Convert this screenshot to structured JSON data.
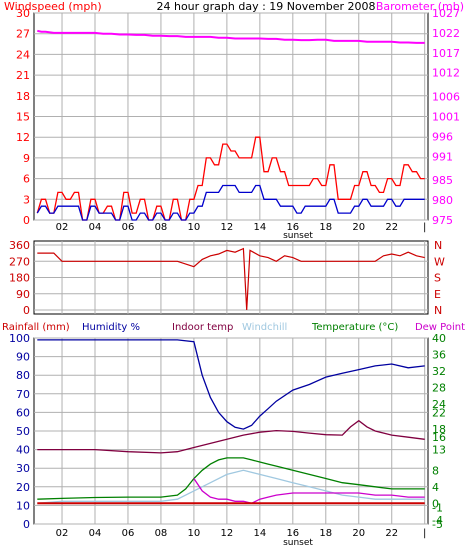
{
  "header": {
    "left_label": "Windspeed (mph)",
    "title": "24 hour graph day : 19 November 2008",
    "right_label": "Barometer (mb)"
  },
  "colors": {
    "wind": "#ff0000",
    "wind_avg": "#0000cc",
    "barometer": "#ff00ff",
    "direction": "#cc0000",
    "humidity": "#0000a0",
    "indoor": "#800040",
    "windchill": "#a0c8e0",
    "temperature": "#008000",
    "dewpoint": "#cc00cc",
    "rainfall": "#cc0000",
    "grid": "#b0b0b0"
  },
  "x_ticks": [
    "02",
    "04",
    "06",
    "08",
    "10",
    "12",
    "14",
    "16",
    "18",
    "20",
    "22",
    "|"
  ],
  "sunset_label": "sunset",
  "chart_data": [
    {
      "type": "line",
      "title": "24 hour graph day : 19 November 2008",
      "left_label": "Windspeed (mph)",
      "right_label": "Barometer (mb)",
      "y_ticks": [
        0,
        3,
        6,
        9,
        12,
        15,
        18,
        21,
        24,
        27,
        30
      ],
      "y2_ticks": [
        975,
        980,
        985,
        991,
        996,
        1001,
        1006,
        1012,
        1017,
        1022,
        1027
      ],
      "ylim": [
        0,
        30
      ],
      "y2lim": [
        975,
        1027
      ],
      "x_range_hours": [
        0.5,
        24
      ],
      "series": [
        {
          "key": "gust",
          "color": "#ff0000",
          "x": [
            0.5,
            1,
            1.5,
            2,
            2.5,
            3,
            3.5,
            4,
            4.5,
            5,
            5.5,
            6,
            6.5,
            7,
            7.5,
            8,
            8.5,
            9,
            9.5,
            10,
            10.5,
            11,
            11.5,
            12,
            12.5,
            13,
            13.5,
            14,
            14.5,
            15,
            15.5,
            16,
            16.5,
            17,
            17.5,
            18,
            18.5,
            19,
            19.5,
            20,
            20.5,
            21,
            21.5,
            22,
            22.5,
            23,
            23.5,
            24
          ],
          "values": [
            1,
            3,
            1,
            4,
            3,
            4,
            0,
            3,
            1,
            2,
            0,
            4,
            1,
            3,
            0,
            2,
            0,
            3,
            0,
            3,
            5,
            9,
            8,
            11,
            10,
            9,
            9,
            12,
            7,
            9,
            7,
            5,
            5,
            5,
            6,
            5,
            8,
            3,
            3,
            5,
            7,
            5,
            4,
            6,
            5,
            8,
            7,
            6
          ]
        },
        {
          "key": "average",
          "color": "#0000cc",
          "x": [
            0.5,
            1,
            1.5,
            2,
            2.5,
            3,
            3.5,
            4,
            4.5,
            5,
            5.5,
            6,
            6.5,
            7,
            7.5,
            8,
            8.5,
            9,
            9.5,
            10,
            10.5,
            11,
            11.5,
            12,
            12.5,
            13,
            13.5,
            14,
            14.5,
            15,
            15.5,
            16,
            16.5,
            17,
            17.5,
            18,
            18.5,
            19,
            19.5,
            20,
            20.5,
            21,
            21.5,
            22,
            22.5,
            23,
            23.5,
            24
          ],
          "values": [
            1,
            2,
            1,
            2,
            2,
            2,
            0,
            2,
            1,
            1,
            0,
            2,
            0,
            1,
            0,
            1,
            0,
            1,
            0,
            1,
            2,
            4,
            4,
            5,
            5,
            4,
            4,
            5,
            3,
            3,
            2,
            2,
            1,
            2,
            2,
            2,
            3,
            1,
            1,
            2,
            3,
            2,
            2,
            3,
            2,
            3,
            3,
            3
          ]
        },
        {
          "key": "barometer",
          "color": "#ff00ff",
          "x": [
            0.5,
            1,
            2,
            3,
            4,
            5,
            6,
            7,
            8,
            9,
            10,
            11,
            12,
            13,
            14,
            15,
            16,
            17,
            18,
            19,
            20,
            21,
            22,
            23,
            24
          ],
          "values": [
            1022.5,
            1022.3,
            1022,
            1022,
            1022,
            1021.8,
            1021.6,
            1021.5,
            1021.3,
            1021.2,
            1021,
            1021,
            1020.8,
            1020.6,
            1020.6,
            1020.5,
            1020.3,
            1020.2,
            1020.3,
            1020,
            1020,
            1019.8,
            1019.8,
            1019.6,
            1019.5
          ]
        }
      ]
    },
    {
      "type": "line",
      "title": "",
      "y_ticks": [
        0,
        90,
        180,
        270,
        360
      ],
      "ylim": [
        0,
        360
      ],
      "compass_labels": [
        "N",
        "W",
        "S",
        "E",
        "N"
      ],
      "series": [
        {
          "key": "direction",
          "color": "#cc0000",
          "x": [
            0.5,
            1,
            1.5,
            2,
            3,
            4,
            5,
            6,
            7,
            8,
            9,
            10,
            10.5,
            11,
            11.5,
            12,
            12.5,
            13,
            13.2,
            13.4,
            13.6,
            14,
            14.5,
            15,
            15.5,
            16,
            16.5,
            17,
            18,
            19,
            20,
            20.5,
            21,
            21.5,
            22,
            22.5,
            23,
            23.5,
            24
          ],
          "values": [
            315,
            315,
            315,
            270,
            270,
            270,
            270,
            270,
            270,
            270,
            270,
            240,
            280,
            300,
            310,
            330,
            320,
            340,
            0,
            330,
            320,
            300,
            290,
            270,
            300,
            290,
            270,
            270,
            270,
            270,
            270,
            270,
            270,
            300,
            310,
            300,
            320,
            300,
            290
          ]
        }
      ]
    },
    {
      "type": "line",
      "title": "",
      "labels": [
        "Rainfall (mm)",
        "Humidity %",
        "Indoor temp",
        "Windchill",
        "Temperature (°C)",
        "Dew Point"
      ],
      "y_ticks": [
        0,
        10,
        20,
        30,
        40,
        50,
        60,
        70,
        80,
        90,
        100
      ],
      "y2_ticks": [
        -5,
        -4,
        -1,
        0,
        4,
        8,
        13,
        16,
        18,
        22,
        24,
        28,
        32,
        36,
        40
      ],
      "ylim": [
        0,
        100
      ],
      "y2lim": [
        -5,
        40
      ],
      "series": [
        {
          "key": "humidity",
          "color": "#0000a0",
          "x": [
            0.5,
            2,
            4,
            6,
            8,
            9,
            10,
            10.5,
            11,
            11.5,
            12,
            12.5,
            13,
            13.5,
            14,
            14.5,
            15,
            16,
            17,
            18,
            19,
            20,
            21,
            22,
            23,
            24
          ],
          "values": [
            99,
            99,
            99,
            99,
            99,
            99,
            98,
            80,
            68,
            60,
            55,
            52,
            51,
            53,
            58,
            62,
            66,
            72,
            75,
            79,
            81,
            83,
            85,
            86,
            84,
            85
          ]
        },
        {
          "key": "indoor_temp",
          "color": "#800040",
          "x": [
            0.5,
            2,
            4,
            6,
            8,
            9,
            10,
            11,
            12,
            13,
            14,
            15,
            16,
            17,
            18,
            19,
            19.5,
            20,
            20.5,
            21,
            22,
            23,
            24
          ],
          "values": [
            13,
            13,
            13,
            12.5,
            12.2,
            12.5,
            13.5,
            14.5,
            15.5,
            16.5,
            17.2,
            17.6,
            17.4,
            17,
            16.6,
            16.5,
            18.5,
            20,
            18.5,
            17.5,
            16.5,
            16,
            15.5
          ]
        },
        {
          "key": "windchill",
          "color": "#a0c8e0",
          "x": [
            0.5,
            2,
            4,
            6,
            8,
            9,
            10,
            11,
            12,
            13,
            14,
            15,
            16,
            17,
            18,
            19,
            20,
            21,
            22,
            23,
            24
          ],
          "values": [
            0,
            0.5,
            0.5,
            0.5,
            0.5,
            1,
            3,
            5,
            7,
            8,
            7,
            6,
            5,
            4,
            3,
            2,
            1.5,
            1,
            1,
            1,
            1
          ]
        },
        {
          "key": "temperature",
          "color": "#008000",
          "x": [
            0.5,
            2,
            4,
            6,
            8,
            9,
            9.5,
            10,
            10.5,
            11,
            11.5,
            12,
            12.5,
            13,
            13.5,
            14,
            14.5,
            15,
            16,
            17,
            18,
            19,
            20,
            21,
            22,
            23,
            24
          ],
          "values": [
            1,
            1.2,
            1.4,
            1.5,
            1.5,
            2,
            3.5,
            6,
            8,
            9.5,
            10.5,
            11,
            11,
            11,
            10.5,
            10,
            9.5,
            9,
            8,
            7,
            6,
            5,
            4.5,
            4,
            3.5,
            3.5,
            3.5
          ]
        },
        {
          "key": "dewpoint",
          "color": "#cc00cc",
          "x": [
            10,
            10.5,
            11,
            11.5,
            12,
            12.5,
            13,
            13.5,
            14,
            14.5,
            15,
            16,
            17,
            18,
            19,
            20,
            21,
            22,
            23,
            24
          ],
          "values": [
            6,
            3,
            1.5,
            1,
            1,
            0.5,
            0.5,
            0,
            1,
            1.5,
            2,
            2.5,
            2.5,
            2.5,
            2.5,
            2.5,
            2,
            2,
            1.5,
            1.5
          ]
        },
        {
          "key": "rainfall",
          "color": "#cc0000",
          "x": [
            0.5,
            24
          ],
          "values": [
            0,
            0
          ]
        }
      ]
    }
  ]
}
